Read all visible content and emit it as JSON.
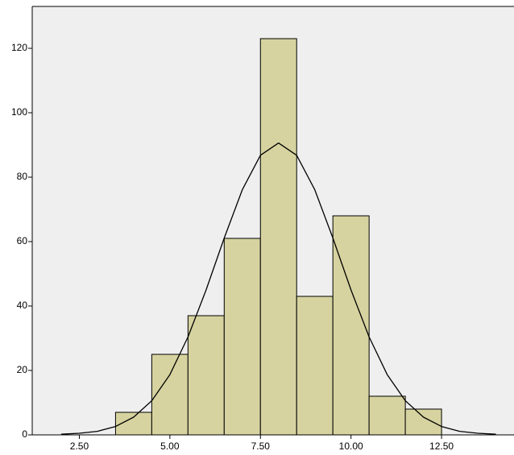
{
  "chart_data": {
    "type": "histogram",
    "bins": [
      3.5,
      4.5,
      5.5,
      6.5,
      7.5,
      8.5,
      9.5,
      10.5,
      11.5,
      12.5
    ],
    "counts": [
      7,
      25,
      37,
      61,
      123,
      43,
      68,
      12,
      8
    ],
    "color": "#d6d3a0",
    "xlim": [
      1.2,
      14.5
    ],
    "xticks": [
      {
        "value": 2.5,
        "label": "2.50"
      },
      {
        "value": 5,
        "label": "5.00"
      },
      {
        "value": 7.5,
        "label": "7.50"
      },
      {
        "value": 10,
        "label": "10.00"
      },
      {
        "value": 12.5,
        "label": "12.50"
      }
    ],
    "ylim": [
      0,
      133
    ],
    "yticks": [
      0,
      20,
      40,
      60,
      80,
      100,
      120
    ],
    "curve": {
      "x": [
        2,
        2.5,
        3,
        3.5,
        4,
        4.5,
        5,
        5.5,
        6,
        6.5,
        7,
        7.5,
        8,
        8.5,
        9,
        9.5,
        10,
        10.5,
        11,
        11.5,
        12,
        12.5,
        13,
        13.5,
        14
      ],
      "values": [
        0.2,
        0.5,
        1.1,
        2.6,
        5.5,
        10.6,
        18.7,
        30.4,
        45.0,
        61.1,
        76.1,
        86.8,
        90.6,
        86.8,
        76.1,
        61.1,
        45.0,
        30.4,
        18.7,
        10.6,
        5.5,
        2.6,
        1.1,
        0.5,
        0.2
      ],
      "color": "#000000"
    }
  }
}
